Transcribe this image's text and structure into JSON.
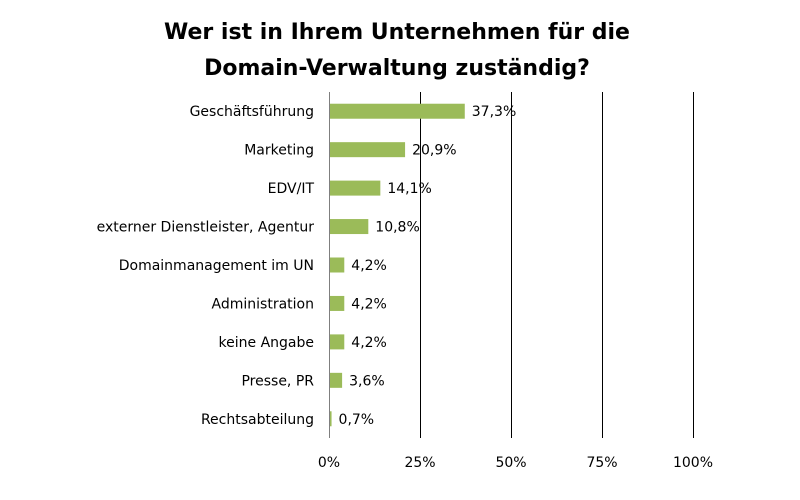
{
  "chart_data": {
    "type": "bar",
    "orientation": "horizontal",
    "title": "Wer ist in Ihrem Unternehmen für die Domain-Verwaltung zuständig?",
    "title_lines": [
      "Wer ist in Ihrem Unternehmen für die",
      "Domain-Verwaltung zuständig?"
    ],
    "categories": [
      "Geschäftsführung",
      "Marketing",
      "EDV/IT",
      "externer Dienstleister, Agentur",
      "Domainmanagement im UN",
      "Administration",
      "keine Angabe",
      "Presse, PR",
      "Rechtsabteilung"
    ],
    "values": [
      37.3,
      20.9,
      14.1,
      10.8,
      4.2,
      4.2,
      4.2,
      3.6,
      0.7
    ],
    "value_labels": [
      "37,3%",
      "20,9%",
      "14,1%",
      "10,8%",
      "4,2%",
      "4,2%",
      "4,2%",
      "3,6%",
      "0,7%"
    ],
    "xlim": [
      0,
      100
    ],
    "x_ticks": [
      0,
      25,
      50,
      75,
      100
    ],
    "x_tick_labels": [
      "0%",
      "25%",
      "50%",
      "75%",
      "100%"
    ],
    "xlabel": "",
    "ylabel": "",
    "grid": true,
    "legend": "none",
    "bar_color": "#9bbb59"
  }
}
